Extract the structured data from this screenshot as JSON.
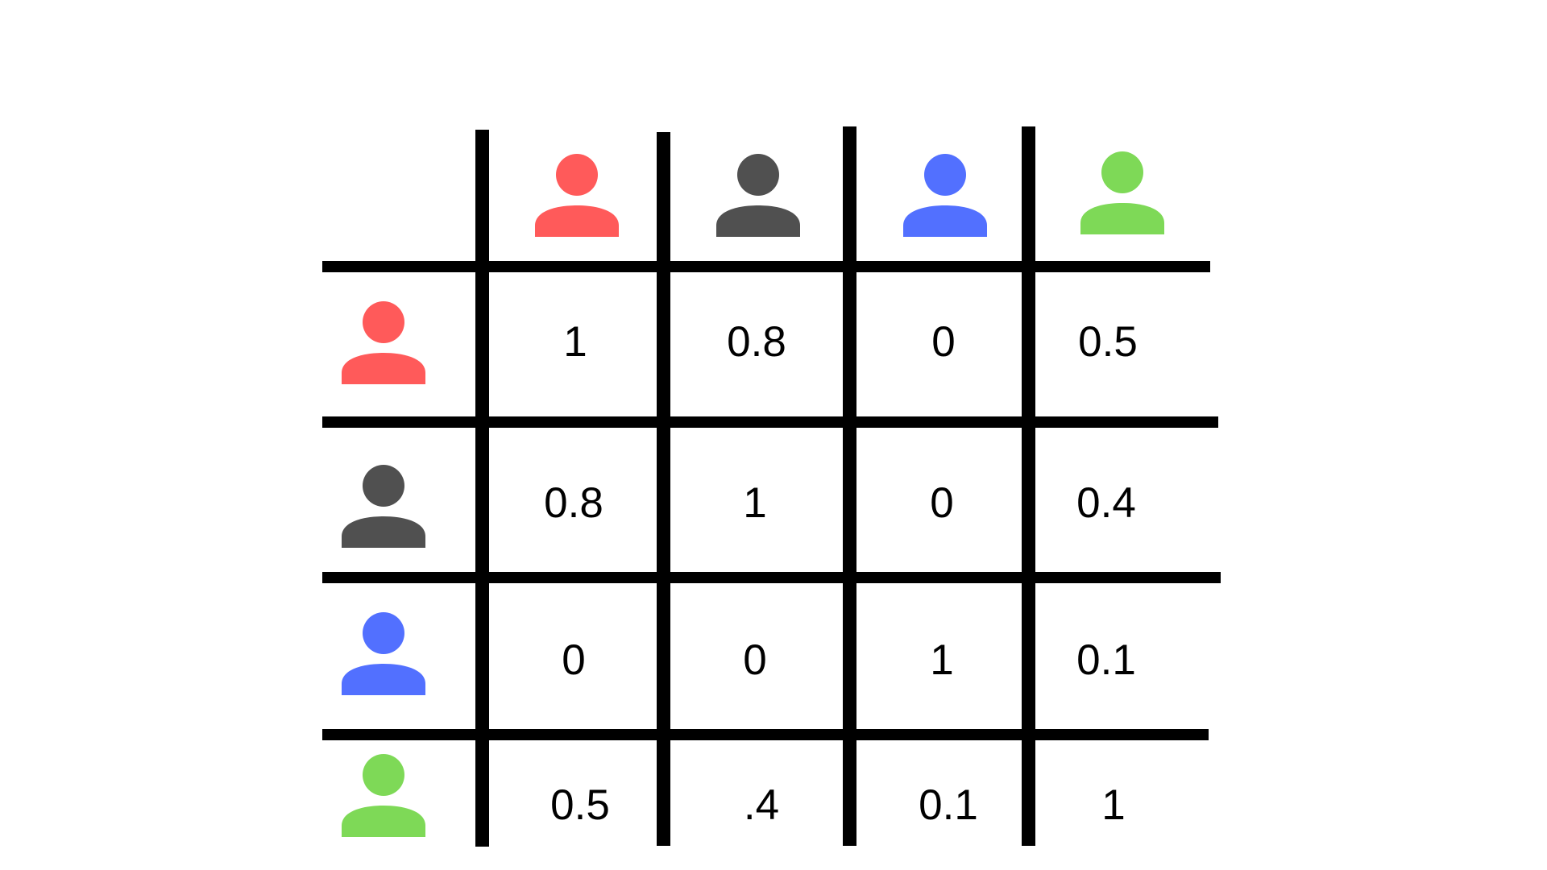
{
  "matrix": {
    "people": [
      {
        "name": "red-person",
        "color": "#ff5a5a"
      },
      {
        "name": "gray-person",
        "color": "#505050"
      },
      {
        "name": "blue-person",
        "color": "#5270ff"
      },
      {
        "name": "green-person",
        "color": "#7ed957"
      }
    ],
    "rows": [
      [
        "1",
        "0.8",
        "0",
        "0.5"
      ],
      [
        "0.8",
        "1",
        "0",
        "0.4"
      ],
      [
        "0",
        "0",
        "1",
        "0.1"
      ],
      [
        "0.5",
        ".4",
        "0.1",
        "1"
      ]
    ]
  }
}
